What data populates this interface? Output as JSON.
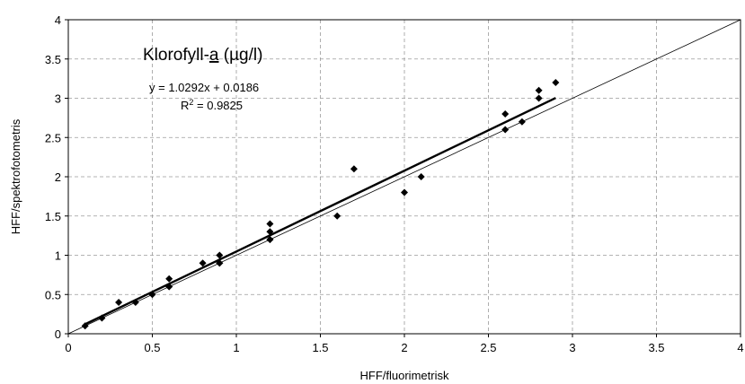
{
  "chart_data": {
    "type": "scatter",
    "title": "Klorofyll-a (µg/l)",
    "title_main": "Klorofyll-",
    "title_underlined": "a",
    "title_unit": " (µg/l)",
    "xlabel": "HFF/fluorimetrisk",
    "ylabel": "HFF/spektrofotometris",
    "xlim": [
      0,
      4
    ],
    "ylim": [
      0,
      4
    ],
    "x_ticks": [
      "0",
      "0.5",
      "1",
      "1.5",
      "2",
      "2.5",
      "3",
      "3.5",
      "4"
    ],
    "y_ticks": [
      "0",
      "0.5",
      "1",
      "1.5",
      "2",
      "2.5",
      "3",
      "3.5",
      "4"
    ],
    "grid": true,
    "equation": "y = 1.0292x + 0.0186",
    "r2_label": "R",
    "r2_value": " = 0.9825",
    "trendline": {
      "slope": 1.0292,
      "intercept": 0.0186,
      "x_range": [
        0.1,
        2.9
      ]
    },
    "identity_line": {
      "from": [
        0,
        0
      ],
      "to": [
        4,
        4
      ]
    },
    "series": [
      {
        "x": [
          0.1,
          0.2,
          0.3,
          0.4,
          0.5,
          0.6,
          0.6,
          0.6,
          0.8,
          0.9,
          0.9,
          0.9,
          1.2,
          1.2,
          1.2,
          1.2,
          1.6,
          1.7,
          2.0,
          2.1,
          2.6,
          2.6,
          2.7,
          2.8,
          2.8,
          2.9
        ],
        "y": [
          0.1,
          0.2,
          0.4,
          0.4,
          0.5,
          0.6,
          0.6,
          0.7,
          0.9,
          0.9,
          1.0,
          0.9,
          1.2,
          1.3,
          1.4,
          1.2,
          1.5,
          2.1,
          1.8,
          2.0,
          2.6,
          2.8,
          2.7,
          3.0,
          3.1,
          3.2
        ]
      }
    ]
  }
}
